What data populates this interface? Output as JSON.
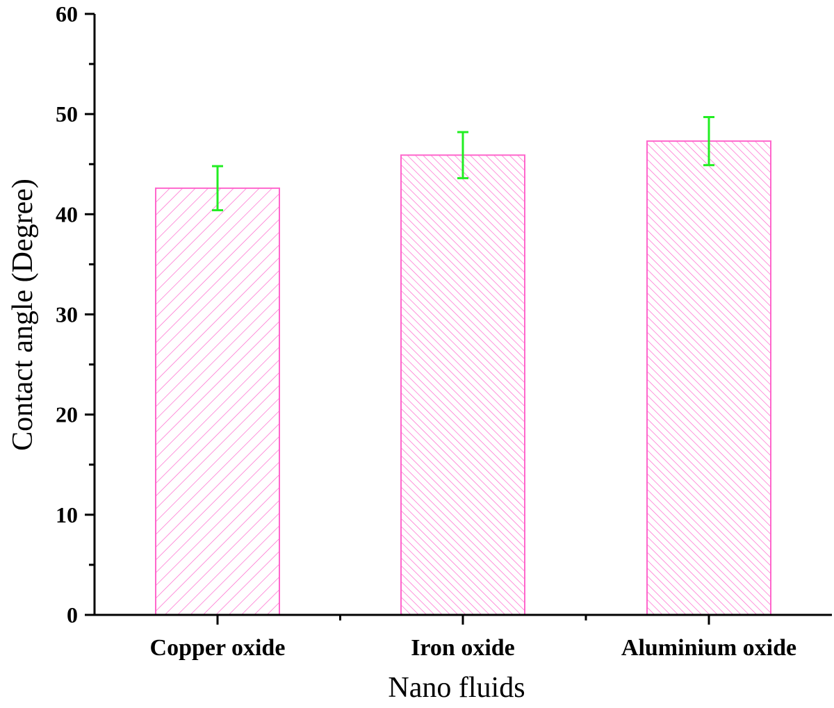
{
  "chart_data": {
    "type": "bar",
    "categories": [
      "Copper oxide",
      "Iron oxide",
      "Aluminium oxide"
    ],
    "values": [
      42.6,
      45.9,
      47.3
    ],
    "errors": [
      2.2,
      2.3,
      2.4
    ],
    "hatch": [
      "forward",
      "backward",
      "backward"
    ],
    "title": "",
    "xlabel": "Nano fluids",
    "ylabel": "Contact angle (Degree)",
    "ylim": [
      0,
      60
    ],
    "yticks": [
      0,
      10,
      20,
      30,
      40,
      50,
      60
    ],
    "grid": false,
    "legend": "none",
    "colors": {
      "bar_edge": "#ff66cc",
      "hatch": "#ff66cc",
      "error_bar": "#22ee22",
      "axis": "#000000"
    }
  }
}
